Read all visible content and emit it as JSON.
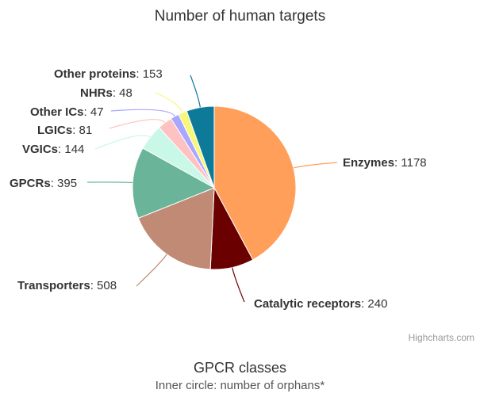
{
  "page": {
    "subtitle_title": "GPCR classes",
    "subtitle_text": "Inner circle: number of orphans*"
  },
  "chart_data": {
    "type": "pie",
    "title": "Number of human targets",
    "credit": "Highcharts.com",
    "separator": ": ",
    "slices": [
      {
        "name": "Enzymes",
        "value": 1178,
        "color": "#ff9f5a"
      },
      {
        "name": "Catalytic receptors",
        "value": 240,
        "color": "#6b0000"
      },
      {
        "name": "Transporters",
        "value": 508,
        "color": "#c08a74"
      },
      {
        "name": "GPCRs",
        "value": 395,
        "color": "#6ab499"
      },
      {
        "name": "VGICs",
        "value": 144,
        "color": "#c9f7e8"
      },
      {
        "name": "LGICs",
        "value": 81,
        "color": "#ffc2c2"
      },
      {
        "name": "Other ICs",
        "value": 47,
        "color": "#a8a6ff"
      },
      {
        "name": "NHRs",
        "value": 48,
        "color": "#f7f77c"
      },
      {
        "name": "Other proteins",
        "value": 153,
        "color": "#0e7a99"
      }
    ]
  }
}
